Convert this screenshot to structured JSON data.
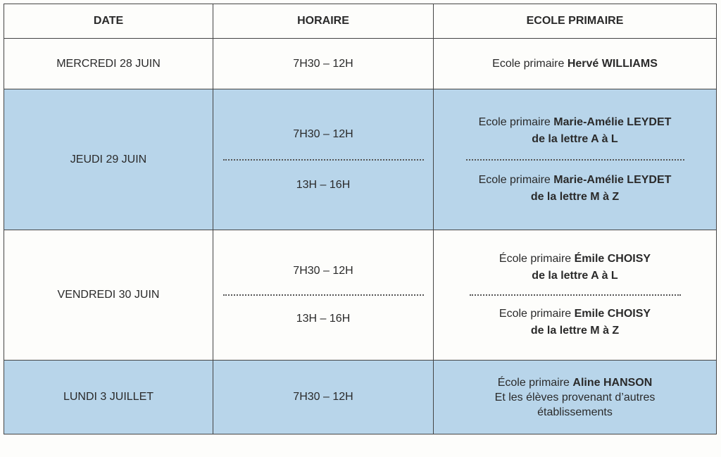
{
  "headers": [
    "DATE",
    "HORAIRE",
    "ECOLE PRIMAIRE"
  ],
  "rows": [
    {
      "date": "MERCREDI 28 JUIN",
      "slots": [
        {
          "time": "7H30 – 12H",
          "school_prefix": "Ecole primaire ",
          "school_name": "Hervé WILLIAMS",
          "detail": ""
        }
      ]
    },
    {
      "date": "JEUDI 29 JUIN",
      "slots": [
        {
          "time": "7H30 – 12H",
          "school_prefix": "Ecole primaire ",
          "school_name": "Marie-Amélie LEYDET",
          "detail": "de la lettre A à L"
        },
        {
          "time": "13H – 16H",
          "school_prefix": "Ecole primaire ",
          "school_name": "Marie-Amélie LEYDET",
          "detail": "de la lettre M à Z"
        }
      ]
    },
    {
      "date": "VENDREDI 30 JUIN",
      "slots": [
        {
          "time": "7H30 – 12H",
          "school_prefix": "École primaire ",
          "school_name": "Émile CHOISY",
          "detail": "de la lettre A à L"
        },
        {
          "time": "13H – 16H",
          "school_prefix": "Ecole primaire ",
          "school_name": "Emile CHOISY",
          "detail": "de la lettre M à Z"
        }
      ]
    },
    {
      "date": "LUNDI 3 JUILLET",
      "slots": [
        {
          "time": "7H30 – 12H",
          "school_prefix": "École primaire ",
          "school_name": "Aline HANSON",
          "detail": "Et les élèves provenant d’autres établissements"
        }
      ]
    }
  ],
  "colors": {
    "row_highlight": "#b8d5ea",
    "border": "#444444"
  }
}
